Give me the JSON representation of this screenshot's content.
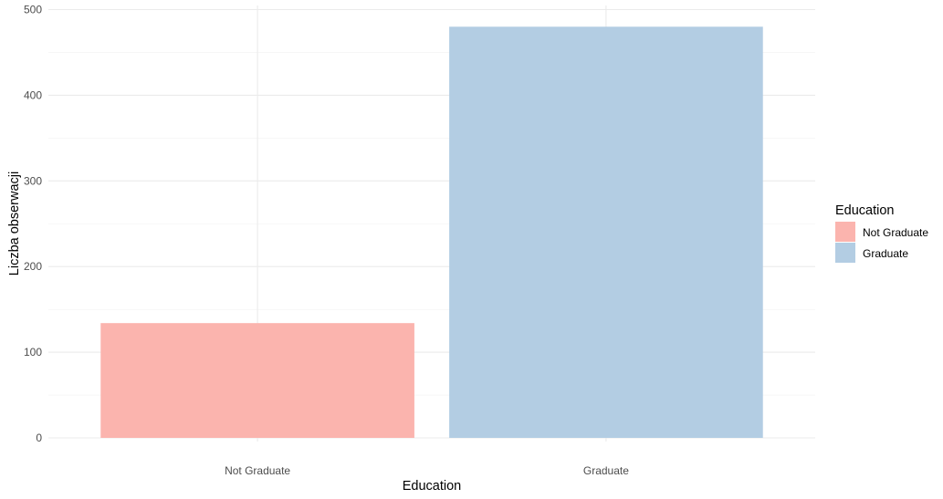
{
  "chart_data": {
    "type": "bar",
    "title": "",
    "xlabel": "Education",
    "ylabel": "Liczba obserwacji",
    "categories": [
      "Not Graduate",
      "Graduate"
    ],
    "values": [
      134,
      480
    ],
    "colors": [
      "#FBB4AE",
      "#B3CDE3"
    ],
    "ylim": [
      0,
      500
    ],
    "yticks": [
      0,
      100,
      200,
      300,
      400,
      500
    ],
    "grid": true,
    "legend": {
      "title": "Education",
      "position": "right",
      "items": [
        {
          "label": "Not Graduate",
          "color": "#FBB4AE"
        },
        {
          "label": "Graduate",
          "color": "#B3CDE3"
        }
      ]
    }
  }
}
